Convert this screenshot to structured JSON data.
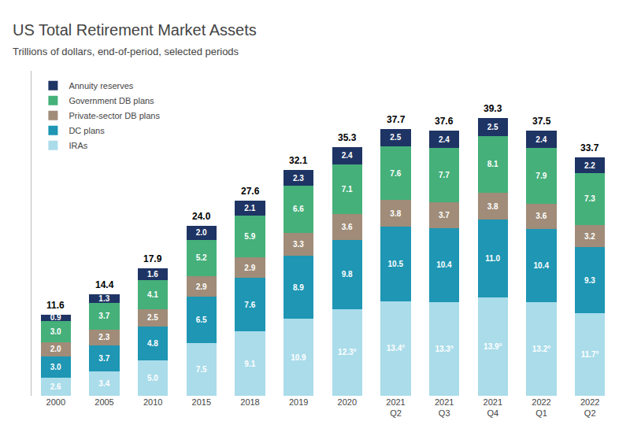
{
  "chart_data": {
    "type": "bar",
    "title": "US Total Retirement Market Assets",
    "subtitle": "Trillions of dollars, end-of-period, selected periods",
    "categories": [
      "2000",
      "2005",
      "2010",
      "2015",
      "2018",
      "2019",
      "2020",
      "2021\nQ2",
      "2021\nQ3",
      "2021\nQ4",
      "2022\nQ1",
      "2022\nQ2"
    ],
    "stacked": true,
    "data_labels": true,
    "grid": false,
    "legend": "top left",
    "tick_labels": "x",
    "ylim": [
      0,
      46
    ],
    "yticks": [],
    "totals": [
      11.6,
      14.4,
      17.9,
      24.0,
      27.6,
      32.1,
      35.3,
      37.7,
      37.6,
      39.3,
      37.5,
      33.7
    ],
    "total_labels": [
      "11.6",
      "14.4",
      "17.9",
      "24.0",
      "27.6",
      "32.1",
      "35.3",
      "37.7",
      "37.6",
      "39.3",
      "37.5",
      "33.7"
    ],
    "series": [
      {
        "name": "IRAs",
        "color": "#aadcea",
        "values": [
          2.6,
          3.4,
          5.0,
          7.5,
          9.1,
          10.9,
          12.3,
          13.4,
          13.3,
          13.9,
          13.2,
          11.7
        ],
        "value_labels": [
          "2.6",
          "3.4",
          "5.0",
          "7.5",
          "9.1",
          "10.9",
          "12.3°",
          "13.4°",
          "13.3°",
          "13.9°",
          "13.2°",
          "11.7°"
        ]
      },
      {
        "name": "DC plans",
        "color": "#1e96b4",
        "values": [
          3.0,
          3.7,
          4.8,
          6.5,
          7.6,
          8.9,
          9.8,
          10.5,
          10.4,
          11.0,
          10.4,
          9.3
        ],
        "value_labels": [
          "3.0",
          "3.7",
          "4.8",
          "6.5",
          "7.6",
          "8.9",
          "9.8",
          "10.5",
          "10.4",
          "11.0",
          "10.4",
          "9.3"
        ]
      },
      {
        "name": "Private-sector DB plans",
        "color": "#a08c78",
        "values": [
          2.0,
          2.3,
          2.5,
          2.9,
          2.9,
          3.3,
          3.6,
          3.8,
          3.7,
          3.8,
          3.6,
          3.2
        ],
        "value_labels": [
          "2.0",
          "2.3",
          "2.5",
          "2.9",
          "2.9",
          "3.3",
          "3.6",
          "3.8",
          "3.7",
          "3.8",
          "3.6",
          "3.2"
        ]
      },
      {
        "name": "Government DB plans",
        "color": "#45b07a",
        "values": [
          3.0,
          3.7,
          4.1,
          5.2,
          5.9,
          6.6,
          7.1,
          7.6,
          7.7,
          8.1,
          7.9,
          7.3
        ],
        "value_labels": [
          "3.0",
          "3.7",
          "4.1",
          "5.2",
          "5.9",
          "6.6",
          "7.1",
          "7.6",
          "7.7",
          "8.1",
          "7.9",
          "7.3"
        ]
      },
      {
        "name": "Annuity reserves",
        "color": "#1e3464",
        "values": [
          0.9,
          1.3,
          1.6,
          2.0,
          2.1,
          2.3,
          2.4,
          2.5,
          2.4,
          2.5,
          2.4,
          2.2
        ],
        "value_labels": [
          "0.9",
          "1.3",
          "1.6",
          "2.0",
          "2.1",
          "2.3",
          "2.4",
          "2.5",
          "2.4",
          "2.5",
          "2.4",
          "2.2"
        ]
      }
    ]
  }
}
